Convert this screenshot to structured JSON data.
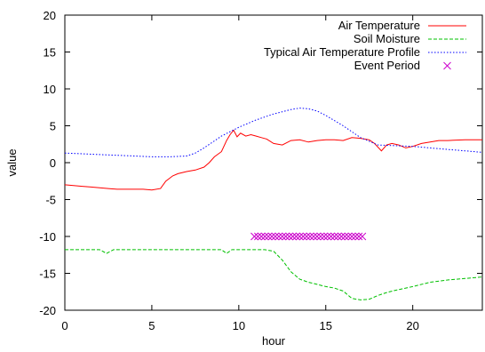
{
  "chart_data": {
    "type": "line",
    "title": "",
    "xlabel": "hour",
    "ylabel": "value",
    "xlim": [
      0,
      24
    ],
    "ylim": [
      -20,
      20
    ],
    "x_ticks": [
      0,
      5,
      10,
      15,
      20
    ],
    "y_ticks": [
      -20,
      -15,
      -10,
      -5,
      0,
      5,
      10,
      15,
      20
    ],
    "x_tick_labels": [
      "0",
      "5",
      "10",
      "15",
      "20"
    ],
    "y_tick_labels": [
      "-20",
      "-15",
      "-10",
      "-5",
      "0",
      "5",
      "10",
      "15",
      "20"
    ],
    "grid": false,
    "legend_position": "top-right",
    "series": [
      {
        "name": "Air Temperature",
        "style": "solid",
        "color": "#ff0000",
        "points": [
          [
            0,
            -3.0
          ],
          [
            0.5,
            -3.1
          ],
          [
            1,
            -3.2
          ],
          [
            1.5,
            -3.3
          ],
          [
            2,
            -3.4
          ],
          [
            2.5,
            -3.5
          ],
          [
            3,
            -3.6
          ],
          [
            3.5,
            -3.6
          ],
          [
            4,
            -3.6
          ],
          [
            4.5,
            -3.6
          ],
          [
            5,
            -3.7
          ],
          [
            5.5,
            -3.5
          ],
          [
            5.8,
            -2.5
          ],
          [
            6.2,
            -1.8
          ],
          [
            6.5,
            -1.5
          ],
          [
            7,
            -1.2
          ],
          [
            7.5,
            -1.0
          ],
          [
            8,
            -0.6
          ],
          [
            8.3,
            0.0
          ],
          [
            8.6,
            0.8
          ],
          [
            9,
            1.5
          ],
          [
            9.3,
            3.0
          ],
          [
            9.5,
            3.8
          ],
          [
            9.7,
            4.4
          ],
          [
            9.9,
            3.5
          ],
          [
            10.1,
            4.0
          ],
          [
            10.4,
            3.6
          ],
          [
            10.7,
            3.8
          ],
          [
            11,
            3.6
          ],
          [
            11.3,
            3.4
          ],
          [
            11.6,
            3.2
          ],
          [
            12,
            2.6
          ],
          [
            12.5,
            2.4
          ],
          [
            13,
            3.0
          ],
          [
            13.5,
            3.1
          ],
          [
            14,
            2.8
          ],
          [
            14.5,
            3.0
          ],
          [
            15,
            3.1
          ],
          [
            15.5,
            3.1
          ],
          [
            16,
            3.0
          ],
          [
            16.5,
            3.4
          ],
          [
            17,
            3.3
          ],
          [
            17.5,
            3.1
          ],
          [
            17.8,
            2.6
          ],
          [
            18.2,
            1.6
          ],
          [
            18.5,
            2.4
          ],
          [
            18.8,
            2.6
          ],
          [
            19.2,
            2.4
          ],
          [
            19.6,
            2.0
          ],
          [
            20,
            2.2
          ],
          [
            20.5,
            2.6
          ],
          [
            21,
            2.8
          ],
          [
            21.5,
            3.0
          ],
          [
            22,
            3.0
          ],
          [
            23,
            3.1
          ],
          [
            24,
            3.1
          ]
        ]
      },
      {
        "name": "Soil Moisture",
        "style": "dashed",
        "color": "#00c000",
        "points": [
          [
            0,
            -11.8
          ],
          [
            1,
            -11.8
          ],
          [
            2,
            -11.8
          ],
          [
            2.4,
            -12.3
          ],
          [
            2.8,
            -11.8
          ],
          [
            4,
            -11.8
          ],
          [
            5,
            -11.8
          ],
          [
            6,
            -11.8
          ],
          [
            7,
            -11.8
          ],
          [
            8,
            -11.8
          ],
          [
            9,
            -11.8
          ],
          [
            9.3,
            -12.3
          ],
          [
            9.6,
            -11.8
          ],
          [
            10.5,
            -11.8
          ],
          [
            11,
            -11.8
          ],
          [
            11.5,
            -11.8
          ],
          [
            12,
            -12.0
          ],
          [
            12.5,
            -13.2
          ],
          [
            13,
            -14.8
          ],
          [
            13.5,
            -15.8
          ],
          [
            14,
            -16.2
          ],
          [
            14.5,
            -16.5
          ],
          [
            15,
            -16.8
          ],
          [
            15.5,
            -17.0
          ],
          [
            16,
            -17.4
          ],
          [
            16.5,
            -18.4
          ],
          [
            17,
            -18.6
          ],
          [
            17.5,
            -18.5
          ],
          [
            18,
            -18.0
          ],
          [
            18.5,
            -17.6
          ],
          [
            19,
            -17.3
          ],
          [
            20,
            -16.8
          ],
          [
            21,
            -16.2
          ],
          [
            22,
            -15.9
          ],
          [
            23,
            -15.7
          ],
          [
            24,
            -15.5
          ]
        ]
      },
      {
        "name": "Typical Air Temperature Profile",
        "style": "dotted",
        "color": "#0000ff",
        "points": [
          [
            0,
            1.3
          ],
          [
            1,
            1.2
          ],
          [
            2,
            1.1
          ],
          [
            3,
            1.0
          ],
          [
            4,
            0.9
          ],
          [
            5,
            0.8
          ],
          [
            6,
            0.8
          ],
          [
            7,
            0.9
          ],
          [
            7.5,
            1.3
          ],
          [
            8,
            2.0
          ],
          [
            8.5,
            2.8
          ],
          [
            9,
            3.6
          ],
          [
            10,
            4.8
          ],
          [
            11,
            5.8
          ],
          [
            12,
            6.6
          ],
          [
            13,
            7.2
          ],
          [
            13.5,
            7.4
          ],
          [
            14,
            7.3
          ],
          [
            14.5,
            7.0
          ],
          [
            15,
            6.4
          ],
          [
            16,
            5.0
          ],
          [
            17,
            3.4
          ],
          [
            18,
            2.4
          ],
          [
            19,
            2.3
          ],
          [
            20,
            2.2
          ],
          [
            21,
            2.0
          ],
          [
            22,
            1.8
          ],
          [
            23,
            1.6
          ],
          [
            24,
            1.4
          ]
        ]
      },
      {
        "name": "Event Period",
        "style": "markers",
        "marker": "x",
        "color": "#cc00cc",
        "y": -10,
        "x_values": [
          10.9,
          11.1,
          11.3,
          11.5,
          11.7,
          11.9,
          12.1,
          12.3,
          12.5,
          12.7,
          12.9,
          13.1,
          13.3,
          13.5,
          13.7,
          13.9,
          14.1,
          14.3,
          14.5,
          14.7,
          14.9,
          15.1,
          15.3,
          15.5,
          15.7,
          15.9,
          16.1,
          16.3,
          16.5,
          16.7,
          16.9,
          17.1
        ]
      }
    ]
  }
}
